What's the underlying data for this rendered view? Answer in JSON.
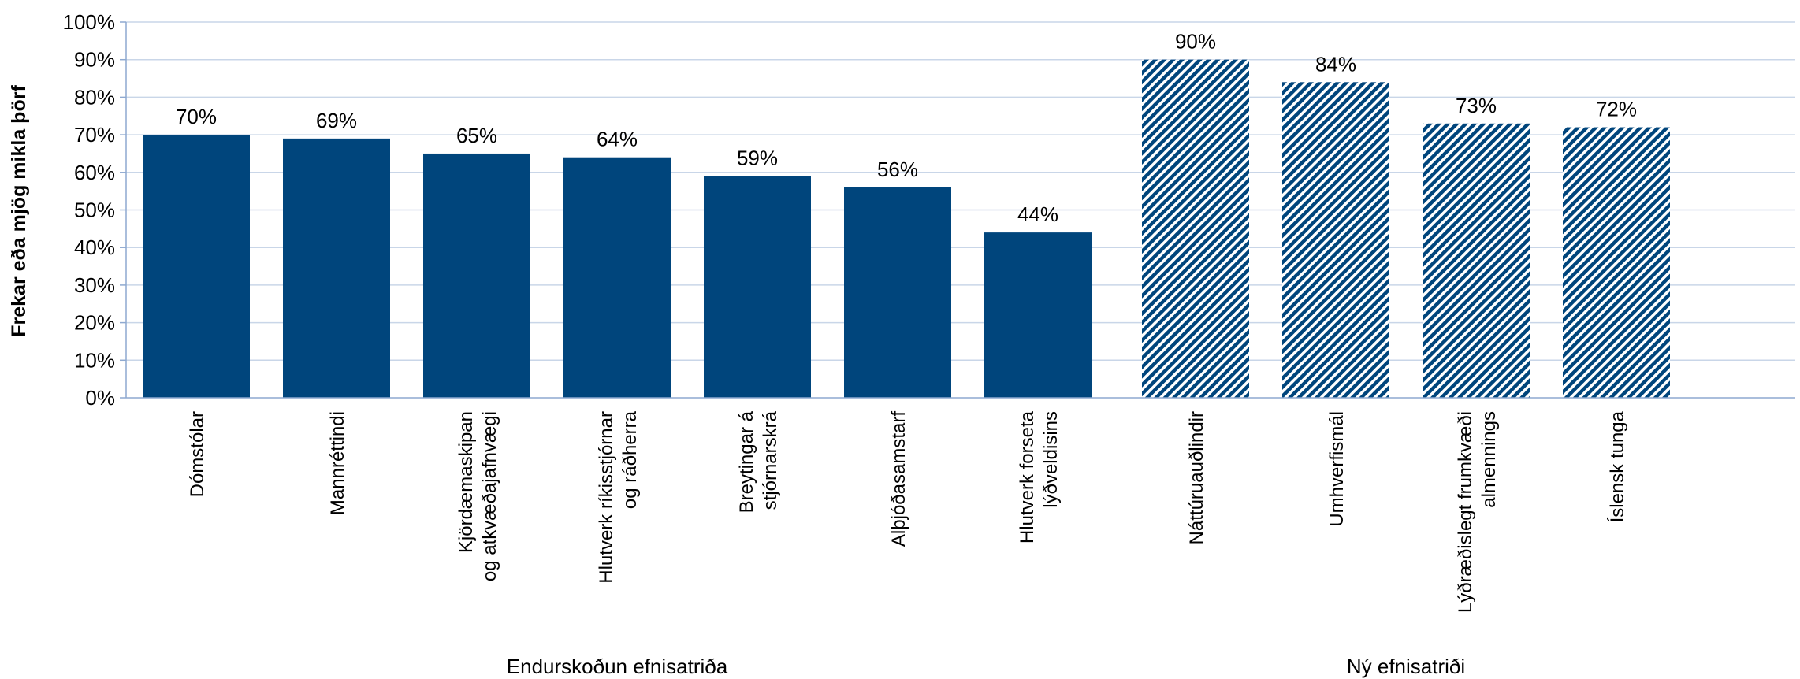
{
  "chart_data": {
    "type": "bar",
    "ylabel": "Frekar eða mjög mikla þörf",
    "ylim": [
      0,
      100
    ],
    "ytick_step": 10,
    "tick_suffix": "%",
    "grid": true,
    "colors": {
      "solid": "#00457C",
      "hatch": "#00457C",
      "grid": "#C9D6E8",
      "axis": "#8EA9D0"
    },
    "groups": [
      {
        "name": "Endurskoðun efnisatriða",
        "style": "solid",
        "categories": [
          [
            "Dómstólar"
          ],
          [
            "Mannréttindi"
          ],
          [
            "Kjördæmaskipan",
            "og atkvæðajafnvægi"
          ],
          [
            "Hlutverk ríkisstjórnar",
            "og ráðherra"
          ],
          [
            "Breytingar á",
            "stjórnarskrá"
          ],
          [
            "Alþjóðasamstarf"
          ],
          [
            "Hlutverk forseta",
            "lýðveldisins"
          ]
        ],
        "values": [
          70,
          69,
          65,
          64,
          59,
          56,
          44
        ]
      },
      {
        "name": "Ný efnisatriði",
        "style": "hatched",
        "categories": [
          [
            "Náttúruauðlindir"
          ],
          [
            "Umhverfismál"
          ],
          [
            "Lýðræðislegt frumkvæði",
            "almennings"
          ],
          [
            "Íslensk tunga"
          ]
        ],
        "values": [
          90,
          84,
          73,
          72
        ]
      }
    ]
  }
}
